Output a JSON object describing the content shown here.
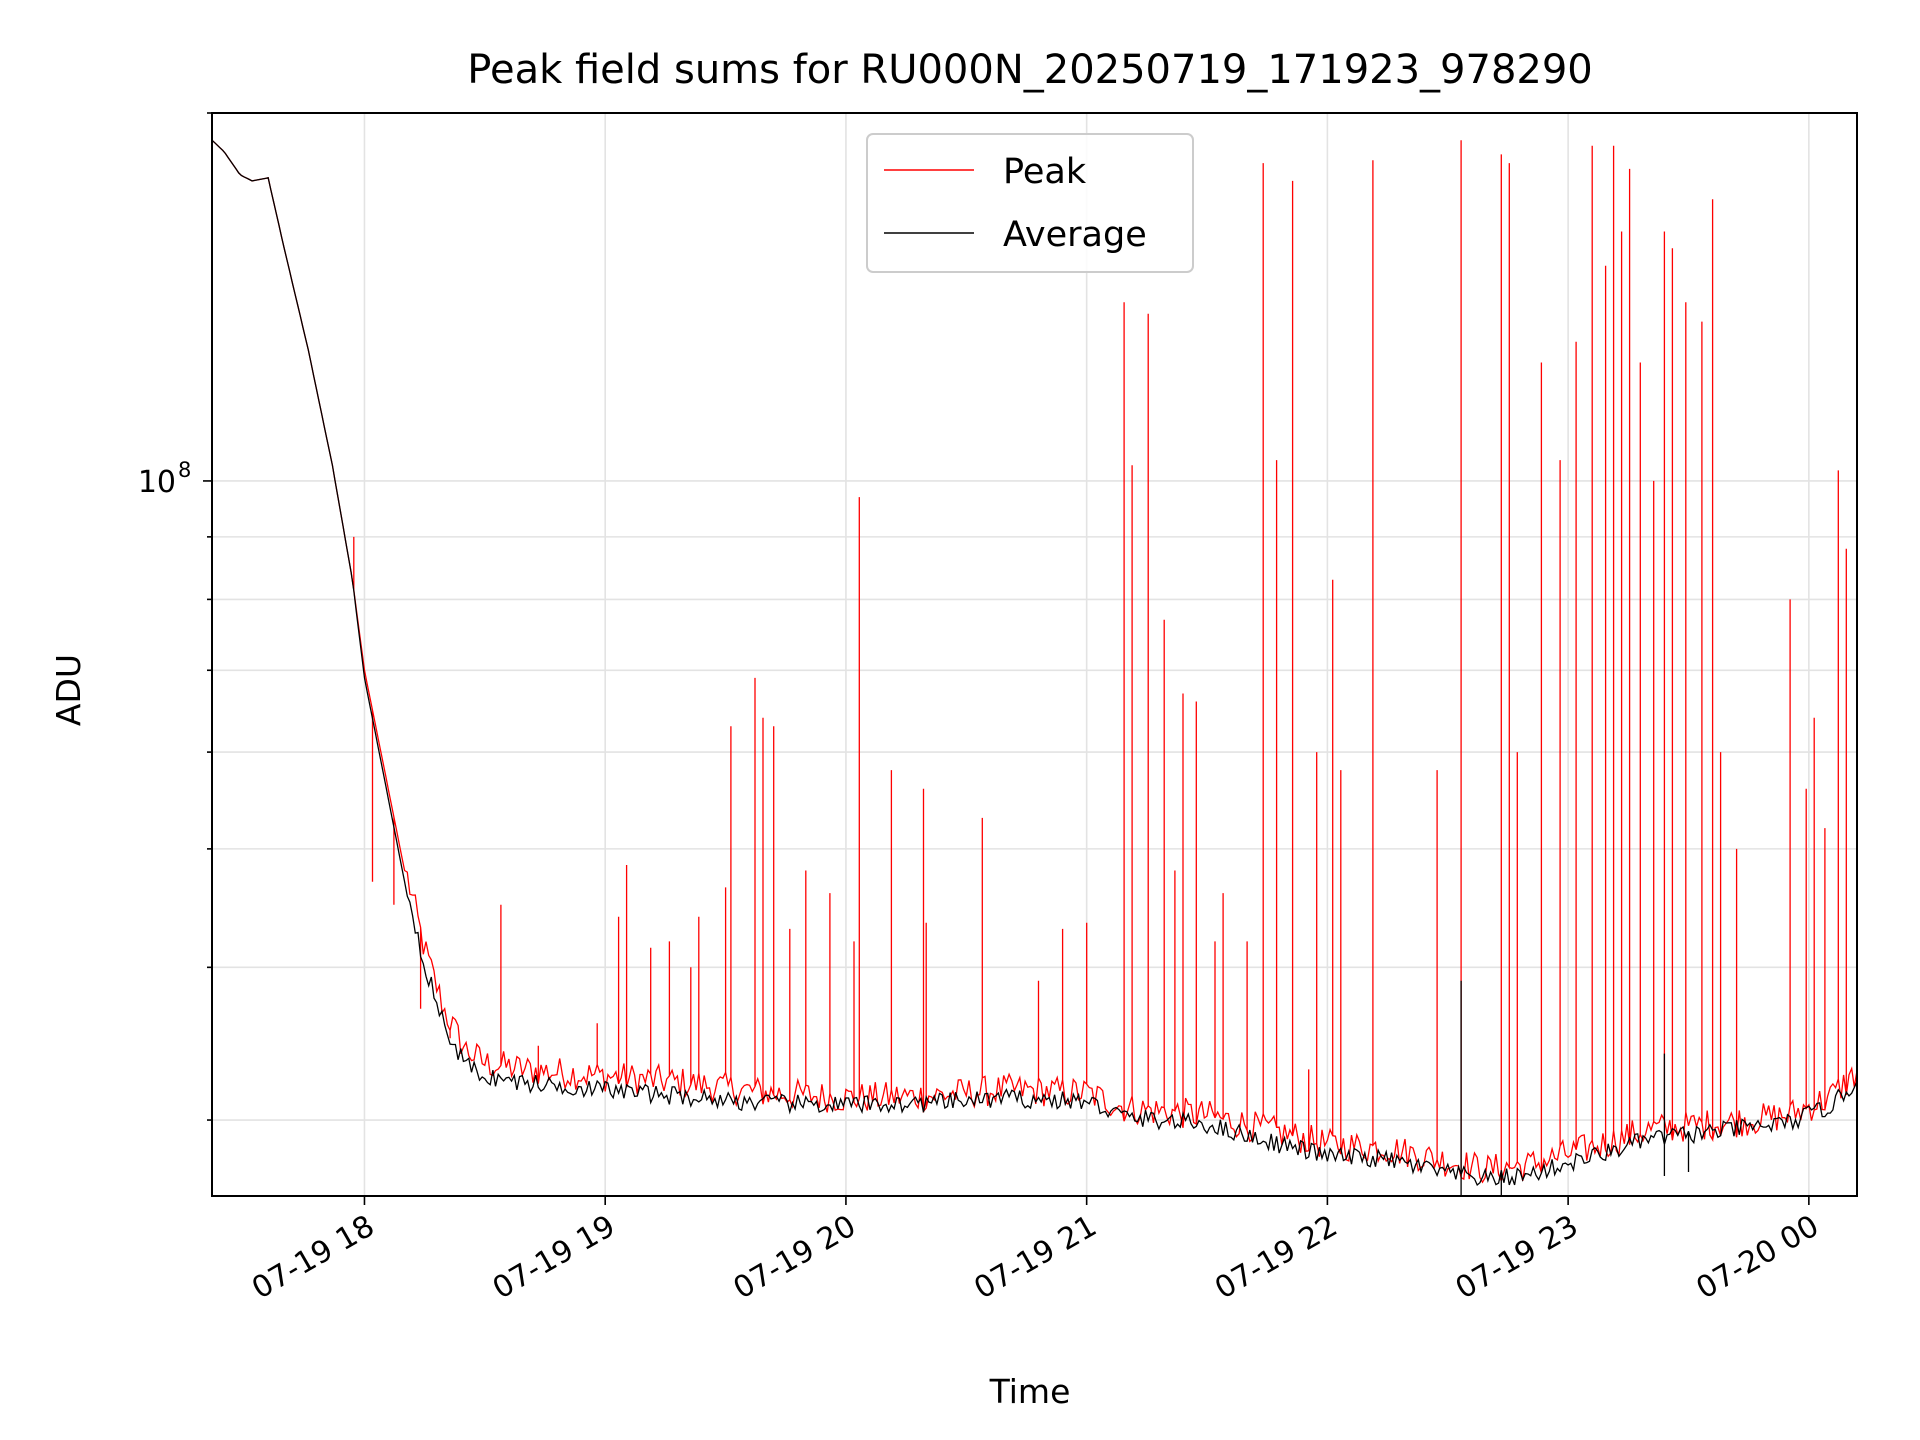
{
  "chart_data": {
    "type": "line",
    "title": "Peak field sums for RU000N_20250719_171923_978290",
    "xlabel": "Time",
    "ylabel": "ADU",
    "yscale": "log",
    "xlim": [
      "2025-07-19 17:22",
      "2025-07-20 00:12"
    ],
    "ylim": [
      26000000,
      200000000
    ],
    "xticks": [
      {
        "value": "2025-07-19 18:00",
        "label": "07-19 18"
      },
      {
        "value": "2025-07-19 19:00",
        "label": "07-19 19"
      },
      {
        "value": "2025-07-19 20:00",
        "label": "07-19 20"
      },
      {
        "value": "2025-07-19 21:00",
        "label": "07-19 21"
      },
      {
        "value": "2025-07-19 22:00",
        "label": "07-19 22"
      },
      {
        "value": "2025-07-19 23:00",
        "label": "07-19 23"
      },
      {
        "value": "2025-07-20 00:00",
        "label": "07-20 00"
      }
    ],
    "yticks_major": [
      {
        "value": 100000000,
        "base": "10",
        "exponent": "8"
      }
    ],
    "yticks_minor": [
      30000000,
      40000000,
      50000000,
      60000000,
      70000000,
      80000000,
      90000000,
      200000000
    ],
    "grid": true,
    "legend_position": "top-center",
    "series": [
      {
        "name": "Peak",
        "color": "#ff0000",
        "baseline": [
          [
            "2025-07-19 17:22",
            190000000
          ],
          [
            "2025-07-19 17:25",
            186000000
          ],
          [
            "2025-07-19 17:29",
            178000000
          ],
          [
            "2025-07-19 17:32",
            176000000
          ],
          [
            "2025-07-19 17:36",
            177000000
          ],
          [
            "2025-07-19 17:40",
            155000000
          ],
          [
            "2025-07-19 17:46",
            128000000
          ],
          [
            "2025-07-19 17:52",
            103000000
          ],
          [
            "2025-07-19 17:57",
            83000000
          ],
          [
            "2025-07-19 18:00",
            70000000
          ],
          [
            "2025-07-19 18:05",
            58000000
          ],
          [
            "2025-07-19 18:10",
            48000000
          ],
          [
            "2025-07-19 18:15",
            41000000
          ],
          [
            "2025-07-19 18:20",
            36500000
          ],
          [
            "2025-07-19 18:25",
            34000000
          ],
          [
            "2025-07-19 18:30",
            33100000
          ],
          [
            "2025-07-19 18:40",
            32700000
          ],
          [
            "2025-07-19 19:00",
            32300000
          ],
          [
            "2025-07-19 19:20",
            31900000
          ],
          [
            "2025-07-19 19:40",
            31300000
          ],
          [
            "2025-07-19 20:00",
            31000000
          ],
          [
            "2025-07-19 20:20",
            31100000
          ],
          [
            "2025-07-19 20:40",
            31500000
          ],
          [
            "2025-07-19 21:00",
            31300000
          ],
          [
            "2025-07-19 21:10",
            30400000
          ],
          [
            "2025-07-19 21:30",
            30000000
          ],
          [
            "2025-07-19 21:45",
            29200000
          ],
          [
            "2025-07-19 22:00",
            28400000
          ],
          [
            "2025-07-19 22:15",
            28200000
          ],
          [
            "2025-07-19 22:30",
            27500000
          ],
          [
            "2025-07-19 22:40",
            27100000
          ],
          [
            "2025-07-19 22:50",
            27300000
          ],
          [
            "2025-07-19 23:00",
            27900000
          ],
          [
            "2025-07-19 23:10",
            28500000
          ],
          [
            "2025-07-19 23:20",
            29200000
          ],
          [
            "2025-07-19 23:40",
            29600000
          ],
          [
            "2025-07-19 23:55",
            30000000
          ],
          [
            "2025-07-20 00:05",
            31000000
          ],
          [
            "2025-07-20 00:12",
            32500000
          ]
        ],
        "spikes": [
          [
            "2025-07-19 17:57",
            90000000
          ],
          [
            "2025-07-19 18:02",
            47000000
          ],
          [
            "2025-07-19 18:07",
            45000000
          ],
          [
            "2025-07-19 18:14",
            37000000
          ],
          [
            "2025-07-19 18:21",
            35000000
          ],
          [
            "2025-07-19 18:34",
            45000000
          ],
          [
            "2025-07-19 18:43",
            34500000
          ],
          [
            "2025-07-19 18:58",
            36000000
          ],
          [
            "2025-07-19 19:03",
            44000000
          ],
          [
            "2025-07-19 19:05",
            48500000
          ],
          [
            "2025-07-19 19:11",
            41500000
          ],
          [
            "2025-07-19 19:16",
            42000000
          ],
          [
            "2025-07-19 19:21",
            40000000
          ],
          [
            "2025-07-19 19:23",
            44000000
          ],
          [
            "2025-07-19 19:30",
            46500000
          ],
          [
            "2025-07-19 19:31",
            63000000
          ],
          [
            "2025-07-19 19:37",
            69000000
          ],
          [
            "2025-07-19 19:39",
            64000000
          ],
          [
            "2025-07-19 19:42",
            63000000
          ],
          [
            "2025-07-19 19:46",
            43000000
          ],
          [
            "2025-07-19 19:50",
            48000000
          ],
          [
            "2025-07-19 19:56",
            46000000
          ],
          [
            "2025-07-19 20:02",
            42000000
          ],
          [
            "2025-07-19 20:03",
            97000000
          ],
          [
            "2025-07-19 20:11",
            58000000
          ],
          [
            "2025-07-19 20:19",
            56000000
          ],
          [
            "2025-07-19 20:20",
            43500000
          ],
          [
            "2025-07-19 20:34",
            53000000
          ],
          [
            "2025-07-19 20:48",
            39000000
          ],
          [
            "2025-07-19 20:54",
            43000000
          ],
          [
            "2025-07-19 21:00",
            43500000
          ],
          [
            "2025-07-19 21:09",
            140000000
          ],
          [
            "2025-07-19 21:11",
            103000000
          ],
          [
            "2025-07-19 21:15",
            137000000
          ],
          [
            "2025-07-19 21:19",
            77000000
          ],
          [
            "2025-07-19 21:22",
            48000000
          ],
          [
            "2025-07-19 21:24",
            67000000
          ],
          [
            "2025-07-19 21:27",
            66000000
          ],
          [
            "2025-07-19 21:32",
            42000000
          ],
          [
            "2025-07-19 21:34",
            46000000
          ],
          [
            "2025-07-19 21:40",
            42000000
          ],
          [
            "2025-07-19 21:44",
            182000000
          ],
          [
            "2025-07-19 21:47",
            104000000
          ],
          [
            "2025-07-19 21:51",
            176000000
          ],
          [
            "2025-07-19 21:55",
            33000000
          ],
          [
            "2025-07-19 21:57",
            60000000
          ],
          [
            "2025-07-19 22:01",
            83000000
          ],
          [
            "2025-07-19 22:03",
            58000000
          ],
          [
            "2025-07-19 22:11",
            183000000
          ],
          [
            "2025-07-19 22:27",
            58000000
          ],
          [
            "2025-07-19 22:33",
            190000000
          ],
          [
            "2025-07-19 22:43",
            185000000
          ],
          [
            "2025-07-19 22:45",
            182000000
          ],
          [
            "2025-07-19 22:47",
            60000000
          ],
          [
            "2025-07-19 22:53",
            125000000
          ],
          [
            "2025-07-19 22:58",
            104000000
          ],
          [
            "2025-07-19 23:02",
            130000000
          ],
          [
            "2025-07-19 23:06",
            188000000
          ],
          [
            "2025-07-19 23:09",
            150000000
          ],
          [
            "2025-07-19 23:11",
            188000000
          ],
          [
            "2025-07-19 23:13",
            160000000
          ],
          [
            "2025-07-19 23:15",
            180000000
          ],
          [
            "2025-07-19 23:18",
            125000000
          ],
          [
            "2025-07-19 23:21",
            100000000
          ],
          [
            "2025-07-19 23:24",
            160000000
          ],
          [
            "2025-07-19 23:26",
            155000000
          ],
          [
            "2025-07-19 23:29",
            140000000
          ],
          [
            "2025-07-19 23:33",
            135000000
          ],
          [
            "2025-07-19 23:36",
            170000000
          ],
          [
            "2025-07-19 23:38",
            60000000
          ],
          [
            "2025-07-19 23:42",
            50000000
          ],
          [
            "2025-07-19 23:55",
            80000000
          ],
          [
            "2025-07-19 23:59",
            56000000
          ],
          [
            "2025-07-20 00:01",
            64000000
          ],
          [
            "2025-07-20 00:04",
            52000000
          ],
          [
            "2025-07-20 00:07",
            102000000
          ],
          [
            "2025-07-20 00:09",
            88000000
          ]
        ]
      },
      {
        "name": "Average",
        "color": "#000000",
        "baseline": [
          [
            "2025-07-19 17:22",
            190000000
          ],
          [
            "2025-07-19 17:25",
            186000000
          ],
          [
            "2025-07-19 17:29",
            178000000
          ],
          [
            "2025-07-19 17:32",
            176000000
          ],
          [
            "2025-07-19 17:36",
            177000000
          ],
          [
            "2025-07-19 17:40",
            155000000
          ],
          [
            "2025-07-19 17:46",
            128000000
          ],
          [
            "2025-07-19 17:52",
            103000000
          ],
          [
            "2025-07-19 17:57",
            83000000
          ],
          [
            "2025-07-19 18:00",
            69000000
          ],
          [
            "2025-07-19 18:05",
            57000000
          ],
          [
            "2025-07-19 18:10",
            47000000
          ],
          [
            "2025-07-19 18:15",
            40000000
          ],
          [
            "2025-07-19 18:20",
            35500000
          ],
          [
            "2025-07-19 18:25",
            33200000
          ],
          [
            "2025-07-19 18:30",
            32400000
          ],
          [
            "2025-07-19 18:40",
            32000000
          ],
          [
            "2025-07-19 19:00",
            31600000
          ],
          [
            "2025-07-19 19:20",
            31200000
          ],
          [
            "2025-07-19 19:40",
            30800000
          ],
          [
            "2025-07-19 20:00",
            30700000
          ],
          [
            "2025-07-19 20:20",
            30800000
          ],
          [
            "2025-07-19 20:40",
            31100000
          ],
          [
            "2025-07-19 21:00",
            30900000
          ],
          [
            "2025-07-19 21:10",
            30000000
          ],
          [
            "2025-07-19 21:30",
            29600000
          ],
          [
            "2025-07-19 21:45",
            28700000
          ],
          [
            "2025-07-19 22:00",
            27900000
          ],
          [
            "2025-07-19 22:15",
            27700000
          ],
          [
            "2025-07-19 22:30",
            27000000
          ],
          [
            "2025-07-19 22:40",
            26700000
          ],
          [
            "2025-07-19 22:50",
            26900000
          ],
          [
            "2025-07-19 23:00",
            27500000
          ],
          [
            "2025-07-19 23:10",
            28100000
          ],
          [
            "2025-07-19 23:20",
            28800000
          ],
          [
            "2025-07-19 23:40",
            29300000
          ],
          [
            "2025-07-19 23:55",
            29700000
          ],
          [
            "2025-07-20 00:05",
            30600000
          ],
          [
            "2025-07-20 00:12",
            32000000
          ]
        ],
        "spikes": [
          [
            "2025-07-19 22:33",
            39000000
          ],
          [
            "2025-07-19 23:24",
            34000000
          ]
        ],
        "dips": [
          [
            "2025-07-19 22:33",
            26000000
          ],
          [
            "2025-07-19 22:43",
            26000000
          ],
          [
            "2025-07-19 23:24",
            27000000
          ],
          [
            "2025-07-19 23:30",
            27200000
          ]
        ]
      }
    ]
  }
}
